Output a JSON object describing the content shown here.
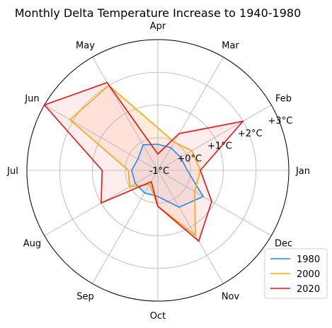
{
  "chart_data": {
    "type": "radar",
    "title": "Monthly Delta Temperature Increase to 1940-1980",
    "categories": [
      "Jan",
      "Feb",
      "Mar",
      "Apr",
      "May",
      "Jun",
      "Jul",
      "Aug",
      "Sep",
      "Oct",
      "Nov",
      "Dec"
    ],
    "radial_ticks": [
      "-1°C",
      "+0°C",
      "+1°C",
      "+2°C",
      "+3°C"
    ],
    "radial_tick_values": [
      -1,
      0,
      1,
      2,
      3
    ],
    "rlim": [
      -1,
      3
    ],
    "grid": true,
    "legend_position": "lower-right",
    "series": [
      {
        "name": "1980",
        "color": "#1f88f5",
        "fill": "#b8c4e6",
        "values": [
          -0.1,
          -0.2,
          -0.2,
          -0.2,
          -0.1,
          -0.3,
          -0.2,
          -0.2,
          -0.2,
          -0.2,
          0.3,
          0.6
        ]
      },
      {
        "name": "2000",
        "color": "#ffa500",
        "fill": "#ffd5b0",
        "values": [
          0.3,
          0.2,
          0.0,
          0.3,
          2.0,
          2.1,
          -0.1,
          0.0,
          -0.5,
          0.1,
          1.3,
          0.3
        ]
      },
      {
        "name": "2020",
        "color": "#ee1111",
        "fill": "#ffd4d6",
        "values": [
          0.3,
          2.0,
          0.3,
          -0.5,
          2.1,
          3.0,
          0.7,
          1.0,
          -0.6,
          0.1,
          1.5,
          0.9
        ]
      }
    ]
  }
}
